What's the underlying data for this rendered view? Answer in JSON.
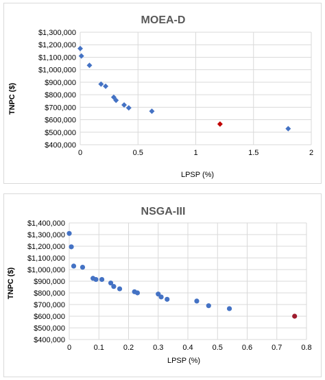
{
  "chart_data": [
    {
      "type": "scatter",
      "title": "MOEA-D",
      "xlabel": "LPSP (%)",
      "ylabel": "TNPC ($)",
      "xlim": [
        0,
        2
      ],
      "ylim": [
        400000,
        1300000
      ],
      "x_ticks": [
        "0",
        "0.5",
        "1",
        "1.5",
        "2"
      ],
      "y_ticks": [
        "$400,000",
        "$500,000",
        "$600,000",
        "$700,000",
        "$800,000",
        "$900,000",
        "$1,000,000",
        "$1,100,000",
        "$1,200,000",
        "$1,300,000"
      ],
      "grid": "vertical and horizontal",
      "marker": "diamond",
      "series": [
        {
          "points": [
            {
              "x": 0.0,
              "y": 1170000
            },
            {
              "x": 0.01,
              "y": 1110000
            },
            {
              "x": 0.08,
              "y": 1035000
            },
            {
              "x": 0.18,
              "y": 885000
            },
            {
              "x": 0.22,
              "y": 868000
            },
            {
              "x": 0.29,
              "y": 780000
            },
            {
              "x": 0.31,
              "y": 755000
            },
            {
              "x": 0.38,
              "y": 718000
            },
            {
              "x": 0.42,
              "y": 695000
            },
            {
              "x": 0.62,
              "y": 668000
            },
            {
              "x": 1.8,
              "y": 528000
            }
          ]
        }
      ],
      "highlight": {
        "x": 1.21,
        "y": 565000
      },
      "colors": {
        "point": "#4472C4",
        "highlight": "#C00000"
      }
    },
    {
      "type": "scatter",
      "title": "NSGA-III",
      "xlabel": "LPSP (%)",
      "ylabel": "TNPC ($)",
      "xlim": [
        0,
        0.8
      ],
      "ylim": [
        400000,
        1400000
      ],
      "x_ticks": [
        "0",
        "0.1",
        "0.2",
        "0.3",
        "0.4",
        "0.5",
        "0.6",
        "0.7",
        "0.8"
      ],
      "y_ticks": [
        "$400,000",
        "$500,000",
        "$600,000",
        "$700,000",
        "$800,000",
        "$900,000",
        "$1,000,000",
        "$1,100,000",
        "$1,200,000",
        "$1,300,000",
        "$1,400,000"
      ],
      "grid": "vertical and horizontal",
      "marker": "circle",
      "series": [
        {
          "points": [
            {
              "x": 0.0,
              "y": 1310000
            },
            {
              "x": 0.007,
              "y": 1195000
            },
            {
              "x": 0.015,
              "y": 1030000
            },
            {
              "x": 0.045,
              "y": 1020000
            },
            {
              "x": 0.08,
              "y": 925000
            },
            {
              "x": 0.09,
              "y": 915000
            },
            {
              "x": 0.11,
              "y": 915000
            },
            {
              "x": 0.14,
              "y": 885000
            },
            {
              "x": 0.15,
              "y": 855000
            },
            {
              "x": 0.17,
              "y": 835000
            },
            {
              "x": 0.22,
              "y": 810000
            },
            {
              "x": 0.23,
              "y": 800000
            },
            {
              "x": 0.3,
              "y": 790000
            },
            {
              "x": 0.31,
              "y": 765000
            },
            {
              "x": 0.33,
              "y": 745000
            },
            {
              "x": 0.43,
              "y": 730000
            },
            {
              "x": 0.47,
              "y": 690000
            },
            {
              "x": 0.54,
              "y": 665000
            }
          ]
        }
      ],
      "highlight": {
        "x": 0.76,
        "y": 600000
      },
      "colors": {
        "point": "#4472C4",
        "highlight": "#9E1B2E"
      }
    }
  ]
}
